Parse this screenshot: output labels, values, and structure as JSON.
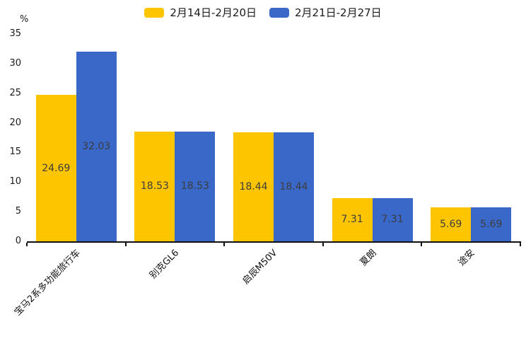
{
  "chart_data": {
    "type": "bar",
    "title": "",
    "unit_label": "%",
    "categories": [
      "宝马2系多功能旅行车",
      "别克GL6",
      "启辰M50V",
      "夏朗",
      "途安"
    ],
    "series": [
      {
        "name": "2月14日-2月20日",
        "color": "#FDC500",
        "values": [
          24.69,
          18.53,
          18.44,
          7.31,
          5.69
        ]
      },
      {
        "name": "2月21日-2月27日",
        "color": "#3A68C8",
        "values": [
          32.03,
          18.53,
          18.44,
          7.31,
          5.69
        ]
      }
    ],
    "value_label_strings": [
      [
        "24.69",
        "18.53",
        "18.44",
        "7.31",
        "5.69"
      ],
      [
        "32.03",
        "18.53",
        "18.44",
        "7.31",
        "5.69"
      ]
    ],
    "ylim": [
      0,
      35
    ],
    "yticks": [
      "0",
      "5",
      "10",
      "15",
      "20",
      "25",
      "30",
      "35"
    ],
    "grid": false,
    "legend_position": "top",
    "value_labels": "inside-center",
    "axis_color": "#111111",
    "value_label_color": "#3d3d3d"
  }
}
